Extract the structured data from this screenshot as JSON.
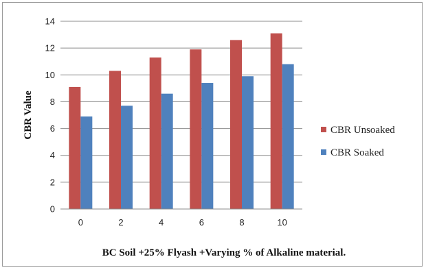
{
  "chart_data": {
    "type": "bar",
    "title": "",
    "xlabel": "BC Soil +25% Flyash +Varying % of Alkaline material.",
    "ylabel": "CBR Value",
    "categories": [
      "0",
      "2",
      "4",
      "6",
      "8",
      "10"
    ],
    "ylim": [
      0,
      14
    ],
    "yticks": [
      "0",
      "2",
      "4",
      "6",
      "8",
      "10",
      "12",
      "14"
    ],
    "grid": true,
    "legend_position": "right",
    "series": [
      {
        "name": "CBR Unsoaked",
        "color": "#c0504d",
        "values": [
          9.1,
          10.3,
          11.3,
          11.9,
          12.6,
          13.1
        ]
      },
      {
        "name": "CBR Soaked",
        "color": "#4f81bd",
        "values": [
          6.9,
          7.7,
          8.6,
          9.4,
          9.9,
          10.8
        ]
      }
    ]
  }
}
